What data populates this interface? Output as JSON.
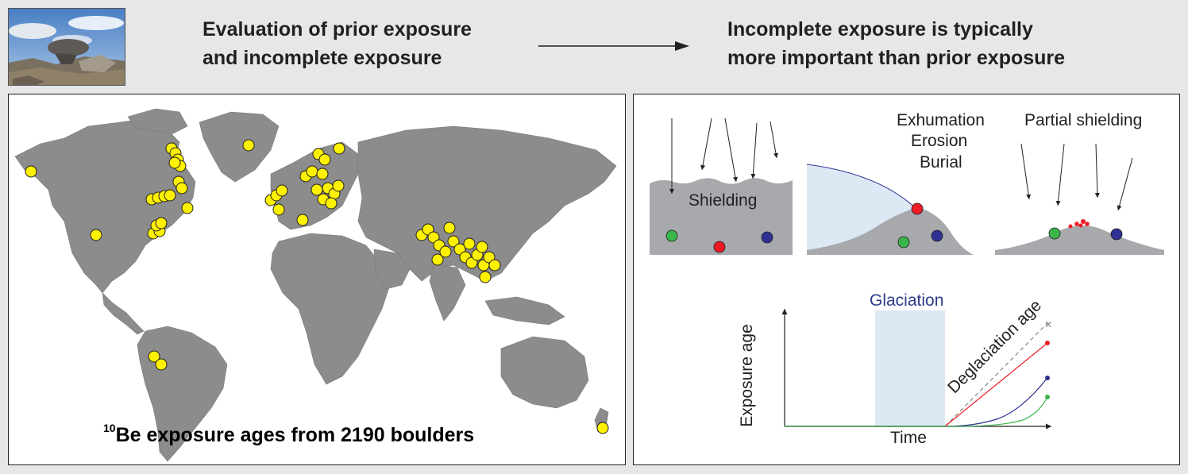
{
  "header": {
    "left_line1": "Evaluation of prior exposure",
    "left_line2": "and incomplete exposure",
    "right_line1": "Incomplete exposure is typically",
    "right_line2": "more important than prior exposure"
  },
  "map": {
    "title_sup": "10",
    "title_rest": "Be exposure ages from 2190 boulders",
    "land_color": "#8c8c8c",
    "marker_color": "#fff200"
  },
  "schematic": {
    "shielding_label": "Shielding",
    "exhumation": "Exhumation",
    "erosion": "Erosion",
    "burial": "Burial",
    "partial_shielding": "Partial shielding",
    "glaciation": "Glaciation",
    "deglaciation_age": "Deglaciation age",
    "ylabel": "Exposure age",
    "xlabel": "Time",
    "colors": {
      "red": "#ed1c24",
      "green": "#39b54a",
      "blue": "#2e3192",
      "ice": "#dde8f5",
      "ground": "#a7a9ac"
    }
  }
}
